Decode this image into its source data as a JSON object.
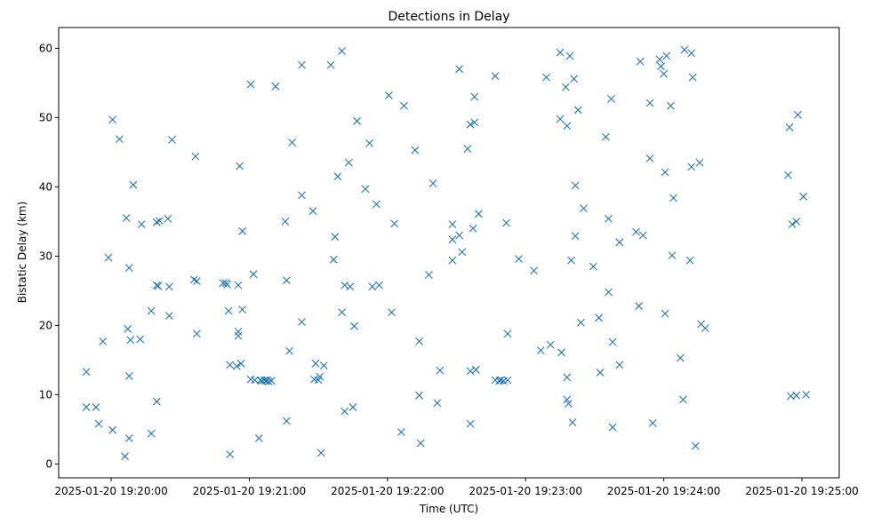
{
  "chart_data": {
    "type": "scatter",
    "title": "Detections in Delay",
    "xlabel": "Time (UTC)",
    "ylabel": "Bistatic Delay (km)",
    "x_unit": "minutes since 2025-01-20 19:20:00",
    "xlim": [
      -0.38,
      5.27
    ],
    "ylim": [
      -2.0,
      63.0
    ],
    "x_ticks": [
      0,
      1,
      2,
      3,
      4,
      5
    ],
    "x_tick_labels": [
      "2025-01-20 19:20:00",
      "2025-01-20 19:21:00",
      "2025-01-20 19:22:00",
      "2025-01-20 19:23:00",
      "2025-01-20 19:24:00",
      "2025-01-20 19:25:00"
    ],
    "y_ticks": [
      0,
      10,
      20,
      30,
      40,
      50,
      60
    ],
    "y_tick_labels": [
      "0",
      "10",
      "20",
      "30",
      "40",
      "50",
      "60"
    ],
    "marker": "x",
    "color": "#1f77b4",
    "grid": false,
    "points": [
      [
        -0.18,
        13.3
      ],
      [
        -0.18,
        8.2
      ],
      [
        -0.11,
        8.2
      ],
      [
        -0.09,
        5.8
      ],
      [
        -0.06,
        17.7
      ],
      [
        -0.02,
        29.8
      ],
      [
        0.01,
        49.7
      ],
      [
        0.01,
        4.9
      ],
      [
        0.06,
        46.9
      ],
      [
        0.1,
        1.1
      ],
      [
        0.11,
        35.5
      ],
      [
        0.12,
        19.5
      ],
      [
        0.13,
        28.3
      ],
      [
        0.13,
        12.7
      ],
      [
        0.13,
        3.7
      ],
      [
        0.14,
        17.9
      ],
      [
        0.16,
        40.3
      ],
      [
        0.21,
        18.0
      ],
      [
        0.22,
        34.6
      ],
      [
        0.29,
        22.1
      ],
      [
        0.29,
        4.4
      ],
      [
        0.33,
        34.9
      ],
      [
        0.33,
        25.8
      ],
      [
        0.33,
        9.0
      ],
      [
        0.34,
        25.7
      ],
      [
        0.35,
        35.1
      ],
      [
        0.41,
        35.4
      ],
      [
        0.42,
        25.6
      ],
      [
        0.42,
        21.4
      ],
      [
        0.44,
        46.8
      ],
      [
        0.6,
        26.6
      ],
      [
        0.61,
        44.4
      ],
      [
        0.62,
        26.4
      ],
      [
        0.62,
        18.8
      ],
      [
        0.81,
        26.1
      ],
      [
        0.83,
        26.1
      ],
      [
        0.84,
        25.9
      ],
      [
        0.85,
        22.1
      ],
      [
        0.86,
        14.3
      ],
      [
        0.86,
        1.4
      ],
      [
        0.91,
        14.1
      ],
      [
        0.92,
        25.8
      ],
      [
        0.92,
        19.1
      ],
      [
        0.92,
        18.5
      ],
      [
        0.93,
        43.0
      ],
      [
        0.94,
        14.5
      ],
      [
        0.95,
        33.6
      ],
      [
        0.95,
        22.3
      ],
      [
        1.01,
        54.8
      ],
      [
        1.01,
        12.2
      ],
      [
        1.03,
        27.4
      ],
      [
        1.04,
        12.1
      ],
      [
        1.07,
        3.7
      ],
      [
        1.08,
        12.1
      ],
      [
        1.09,
        12.0
      ],
      [
        1.11,
        12.1
      ],
      [
        1.12,
        12.0
      ],
      [
        1.13,
        12.1
      ],
      [
        1.14,
        11.9
      ],
      [
        1.16,
        12.0
      ],
      [
        1.19,
        54.5
      ],
      [
        1.26,
        35.0
      ],
      [
        1.27,
        26.5
      ],
      [
        1.27,
        6.2
      ],
      [
        1.29,
        16.3
      ],
      [
        1.31,
        46.4
      ],
      [
        1.38,
        57.6
      ],
      [
        1.38,
        38.8
      ],
      [
        1.38,
        20.5
      ],
      [
        1.46,
        36.5
      ],
      [
        1.47,
        12.2
      ],
      [
        1.48,
        14.5
      ],
      [
        1.5,
        12.1
      ],
      [
        1.51,
        12.6
      ],
      [
        1.52,
        1.6
      ],
      [
        1.54,
        14.2
      ],
      [
        1.59,
        57.6
      ],
      [
        1.61,
        29.5
      ],
      [
        1.62,
        32.8
      ],
      [
        1.64,
        41.5
      ],
      [
        1.67,
        59.6
      ],
      [
        1.67,
        21.9
      ],
      [
        1.69,
        25.8
      ],
      [
        1.69,
        7.6
      ],
      [
        1.72,
        43.5
      ],
      [
        1.73,
        25.6
      ],
      [
        1.75,
        8.2
      ],
      [
        1.76,
        19.9
      ],
      [
        1.78,
        49.5
      ],
      [
        1.84,
        39.7
      ],
      [
        1.87,
        46.3
      ],
      [
        1.89,
        25.6
      ],
      [
        1.92,
        37.5
      ],
      [
        1.94,
        25.8
      ],
      [
        2.01,
        53.2
      ],
      [
        2.03,
        21.9
      ],
      [
        2.05,
        34.7
      ],
      [
        2.1,
        4.6
      ],
      [
        2.12,
        51.7
      ],
      [
        2.2,
        45.3
      ],
      [
        2.23,
        17.7
      ],
      [
        2.23,
        9.9
      ],
      [
        2.24,
        3.0
      ],
      [
        2.3,
        27.3
      ],
      [
        2.33,
        40.5
      ],
      [
        2.36,
        8.8
      ],
      [
        2.38,
        13.5
      ],
      [
        2.47,
        34.6
      ],
      [
        2.47,
        32.4
      ],
      [
        2.47,
        29.4
      ],
      [
        2.52,
        57.0
      ],
      [
        2.52,
        33.0
      ],
      [
        2.54,
        30.6
      ],
      [
        2.58,
        45.5
      ],
      [
        2.6,
        49.0
      ],
      [
        2.6,
        13.4
      ],
      [
        2.6,
        5.8
      ],
      [
        2.62,
        34.0
      ],
      [
        2.63,
        53.0
      ],
      [
        2.63,
        49.3
      ],
      [
        2.64,
        13.6
      ],
      [
        2.66,
        36.1
      ],
      [
        2.78,
        56.0
      ],
      [
        2.78,
        12.1
      ],
      [
        2.81,
        12.0
      ],
      [
        2.82,
        12.1
      ],
      [
        2.84,
        12.0
      ],
      [
        2.86,
        34.8
      ],
      [
        2.87,
        12.1
      ],
      [
        2.87,
        18.8
      ],
      [
        2.95,
        29.6
      ],
      [
        3.06,
        27.9
      ],
      [
        3.11,
        16.4
      ],
      [
        3.15,
        55.8
      ],
      [
        3.18,
        17.2
      ],
      [
        3.25,
        59.4
      ],
      [
        3.25,
        49.8
      ],
      [
        3.26,
        16.1
      ],
      [
        3.29,
        54.4
      ],
      [
        3.3,
        48.8
      ],
      [
        3.3,
        12.5
      ],
      [
        3.3,
        9.3
      ],
      [
        3.31,
        8.7
      ],
      [
        3.32,
        58.9
      ],
      [
        3.33,
        29.4
      ],
      [
        3.34,
        6.0
      ],
      [
        3.35,
        55.6
      ],
      [
        3.36,
        40.2
      ],
      [
        3.36,
        32.9
      ],
      [
        3.38,
        51.1
      ],
      [
        3.4,
        20.4
      ],
      [
        3.42,
        36.9
      ],
      [
        3.49,
        28.5
      ],
      [
        3.53,
        21.1
      ],
      [
        3.54,
        13.2
      ],
      [
        3.58,
        47.2
      ],
      [
        3.6,
        35.4
      ],
      [
        3.6,
        24.8
      ],
      [
        3.62,
        52.7
      ],
      [
        3.63,
        17.6
      ],
      [
        3.63,
        5.3
      ],
      [
        3.68,
        32.0
      ],
      [
        3.68,
        14.3
      ],
      [
        3.8,
        33.5
      ],
      [
        3.82,
        22.8
      ],
      [
        3.83,
        58.1
      ],
      [
        3.85,
        33.0
      ],
      [
        3.9,
        52.1
      ],
      [
        3.9,
        44.1
      ],
      [
        3.92,
        5.9
      ],
      [
        3.97,
        58.4
      ],
      [
        3.98,
        57.4
      ],
      [
        4.0,
        56.3
      ],
      [
        4.01,
        21.7
      ],
      [
        4.01,
        42.1
      ],
      [
        4.02,
        58.9
      ],
      [
        4.05,
        51.7
      ],
      [
        4.06,
        30.1
      ],
      [
        4.07,
        38.4
      ],
      [
        4.12,
        15.3
      ],
      [
        4.14,
        9.3
      ],
      [
        4.15,
        59.8
      ],
      [
        4.19,
        29.4
      ],
      [
        4.2,
        59.3
      ],
      [
        4.2,
        42.9
      ],
      [
        4.21,
        55.8
      ],
      [
        4.23,
        2.6
      ],
      [
        4.26,
        43.5
      ],
      [
        4.27,
        20.2
      ],
      [
        4.3,
        19.6
      ],
      [
        4.9,
        41.7
      ],
      [
        4.91,
        48.6
      ],
      [
        4.92,
        9.8
      ],
      [
        4.93,
        34.6
      ],
      [
        4.96,
        9.9
      ],
      [
        4.96,
        35.0
      ],
      [
        4.97,
        50.4
      ],
      [
        5.01,
        38.6
      ],
      [
        5.03,
        10.0
      ]
    ]
  }
}
